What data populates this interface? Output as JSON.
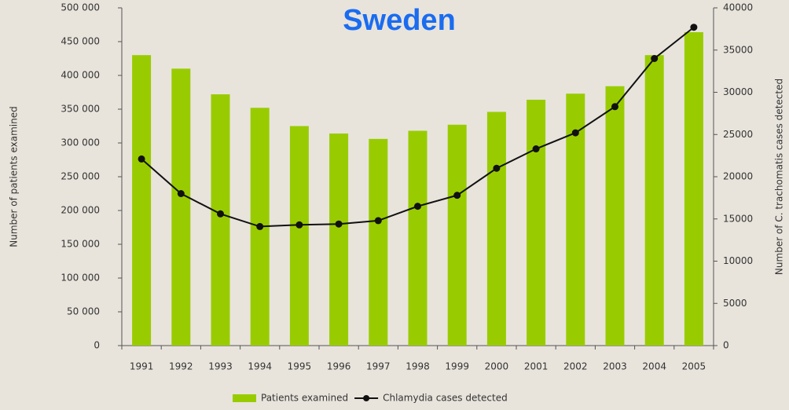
{
  "chart_data": {
    "type": "bar",
    "title": "Sweden",
    "categories": [
      "1991",
      "1992",
      "1993",
      "1994",
      "1995",
      "1996",
      "1997",
      "1998",
      "1999",
      "2000",
      "2001",
      "2002",
      "2003",
      "2004",
      "2005"
    ],
    "y_label": "Number of patients examined",
    "y2_label": "Number of C. trachomatis cases detected",
    "series": [
      {
        "name": "Patients examined",
        "color": "#99cc00",
        "values": [
          430000,
          410000,
          372000,
          352000,
          325000,
          314000,
          306000,
          318000,
          327000,
          346000,
          364000,
          373000,
          384000,
          430000,
          464000
        ]
      },
      {
        "name": "Chlamydia cases detected",
        "color": "#111111",
        "type": "line",
        "axis": "y2",
        "values": [
          22100,
          18000,
          15600,
          14100,
          14300,
          14400,
          14800,
          16500,
          17800,
          21000,
          23300,
          25200,
          28300,
          34000,
          37700
        ]
      }
    ],
    "ylim": [
      0,
      500000
    ],
    "yticks": [
      0,
      {
        "value": 50000,
        "label": "50 000"
      },
      {
        "value": 100000,
        "label": "100 000"
      },
      {
        "value": 150000,
        "label": "150 000"
      },
      {
        "value": 200000,
        "label": "200 000"
      },
      {
        "value": 250000,
        "label": "250 000"
      },
      {
        "value": 300000,
        "label": "300 000"
      },
      {
        "value": 350000,
        "label": "350 000"
      },
      {
        "value": 400000,
        "label": "400 000"
      },
      {
        "value": 450000,
        "label": "450 000"
      },
      {
        "value": 500000,
        "label": "500 000"
      }
    ],
    "y2lim": [
      0,
      40000
    ],
    "y2ticks": [
      0,
      5000,
      10000,
      15000,
      20000,
      25000,
      30000,
      35000,
      40000
    ],
    "legend": "bottom"
  }
}
